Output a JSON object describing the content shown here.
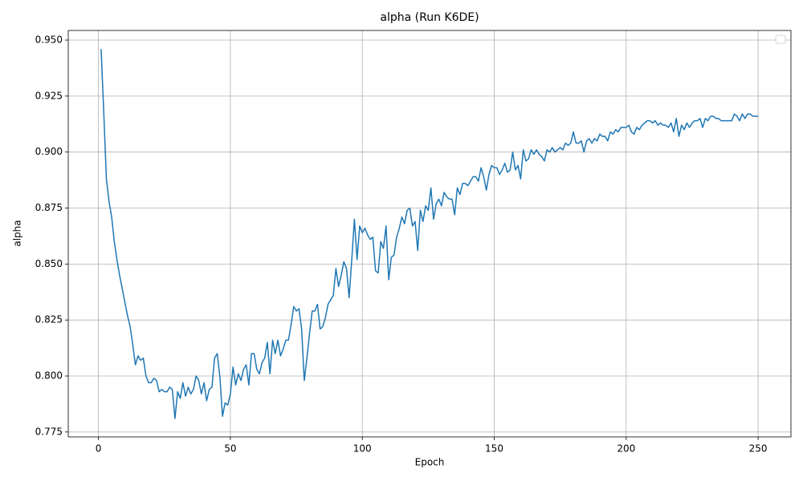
{
  "chart_data": {
    "type": "line",
    "title": "alpha (Run K6DE)",
    "xlabel": "Epoch",
    "ylabel": "alpha",
    "x": [
      1,
      2,
      3,
      4,
      5,
      6,
      7,
      8,
      9,
      10,
      11,
      12,
      13,
      14,
      15,
      16,
      17,
      18,
      19,
      20,
      21,
      22,
      23,
      24,
      25,
      26,
      27,
      28,
      29,
      30,
      31,
      32,
      33,
      34,
      35,
      36,
      37,
      38,
      39,
      40,
      41,
      42,
      43,
      44,
      45,
      46,
      47,
      48,
      49,
      50,
      51,
      52,
      53,
      54,
      55,
      56,
      57,
      58,
      59,
      60,
      61,
      62,
      63,
      64,
      65,
      66,
      67,
      68,
      69,
      70,
      71,
      72,
      73,
      74,
      75,
      76,
      77,
      78,
      79,
      80,
      81,
      82,
      83,
      84,
      85,
      86,
      87,
      88,
      89,
      90,
      91,
      92,
      93,
      94,
      95,
      96,
      97,
      98,
      99,
      100,
      101,
      102,
      103,
      104,
      105,
      106,
      107,
      108,
      109,
      110,
      111,
      112,
      113,
      114,
      115,
      116,
      117,
      118,
      119,
      120,
      121,
      122,
      123,
      124,
      125,
      126,
      127,
      128,
      129,
      130,
      131,
      132,
      133,
      134,
      135,
      136,
      137,
      138,
      139,
      140,
      141,
      142,
      143,
      144,
      145,
      146,
      147,
      148,
      149,
      150,
      151,
      152,
      153,
      154,
      155,
      156,
      157,
      158,
      159,
      160,
      161,
      162,
      163,
      164,
      165,
      166,
      167,
      168,
      169,
      170,
      171,
      172,
      173,
      174,
      175,
      176,
      177,
      178,
      179,
      180,
      181,
      182,
      183,
      184,
      185,
      186,
      187,
      188,
      189,
      190,
      191,
      192,
      193,
      194,
      195,
      196,
      197,
      198,
      199,
      200,
      201,
      202,
      203,
      204,
      205,
      206,
      207,
      208,
      209,
      210,
      211,
      212,
      213,
      214,
      215,
      216,
      217,
      218,
      219,
      220,
      221,
      222,
      223,
      224,
      225,
      226,
      227,
      228,
      229,
      230,
      231,
      232,
      233,
      234,
      235,
      236,
      237,
      238,
      239,
      240,
      241,
      242,
      243,
      244,
      245,
      246,
      247,
      248,
      249,
      250
    ],
    "series": [
      {
        "color": "#1f77b4",
        "values": [
          0.946,
          0.918,
          0.888,
          0.878,
          0.871,
          0.86,
          0.852,
          0.845,
          0.839,
          0.833,
          0.827,
          0.822,
          0.814,
          0.805,
          0.809,
          0.807,
          0.808,
          0.8,
          0.797,
          0.797,
          0.799,
          0.798,
          0.793,
          0.794,
          0.793,
          0.793,
          0.795,
          0.794,
          0.781,
          0.793,
          0.79,
          0.797,
          0.791,
          0.795,
          0.792,
          0.794,
          0.8,
          0.798,
          0.792,
          0.797,
          0.789,
          0.794,
          0.795,
          0.808,
          0.81,
          0.8,
          0.782,
          0.788,
          0.787,
          0.792,
          0.804,
          0.796,
          0.801,
          0.798,
          0.803,
          0.805,
          0.796,
          0.81,
          0.81,
          0.803,
          0.801,
          0.806,
          0.808,
          0.815,
          0.801,
          0.816,
          0.81,
          0.816,
          0.809,
          0.812,
          0.816,
          0.816,
          0.823,
          0.831,
          0.829,
          0.83,
          0.821,
          0.798,
          0.808,
          0.819,
          0.829,
          0.829,
          0.832,
          0.821,
          0.822,
          0.826,
          0.832,
          0.834,
          0.836,
          0.848,
          0.84,
          0.845,
          0.851,
          0.848,
          0.835,
          0.852,
          0.87,
          0.852,
          0.867,
          0.864,
          0.866,
          0.863,
          0.861,
          0.862,
          0.847,
          0.846,
          0.86,
          0.857,
          0.867,
          0.843,
          0.853,
          0.854,
          0.862,
          0.866,
          0.871,
          0.868,
          0.874,
          0.875,
          0.867,
          0.869,
          0.856,
          0.874,
          0.869,
          0.876,
          0.874,
          0.884,
          0.87,
          0.877,
          0.879,
          0.876,
          0.882,
          0.88,
          0.879,
          0.879,
          0.872,
          0.884,
          0.881,
          0.886,
          0.886,
          0.885,
          0.887,
          0.889,
          0.889,
          0.887,
          0.893,
          0.889,
          0.883,
          0.89,
          0.894,
          0.893,
          0.893,
          0.89,
          0.892,
          0.895,
          0.891,
          0.892,
          0.9,
          0.892,
          0.894,
          0.888,
          0.901,
          0.896,
          0.897,
          0.901,
          0.899,
          0.901,
          0.899,
          0.898,
          0.896,
          0.901,
          0.9,
          0.902,
          0.9,
          0.901,
          0.902,
          0.901,
          0.904,
          0.903,
          0.904,
          0.909,
          0.904,
          0.904,
          0.905,
          0.9,
          0.905,
          0.906,
          0.904,
          0.906,
          0.905,
          0.908,
          0.907,
          0.907,
          0.905,
          0.909,
          0.908,
          0.91,
          0.909,
          0.911,
          0.911,
          0.911,
          0.912,
          0.909,
          0.908,
          0.911,
          0.91,
          0.912,
          0.913,
          0.914,
          0.914,
          0.913,
          0.914,
          0.912,
          0.913,
          0.912,
          0.912,
          0.911,
          0.913,
          0.909,
          0.915,
          0.907,
          0.912,
          0.91,
          0.913,
          0.911,
          0.913,
          0.914,
          0.914,
          0.915,
          0.911,
          0.915,
          0.914,
          0.916,
          0.916,
          0.915,
          0.915,
          0.914,
          0.914,
          0.914,
          0.914,
          0.914,
          0.917,
          0.916,
          0.914,
          0.917,
          0.915,
          0.917,
          0.917,
          0.916,
          0.916,
          0.916
        ]
      }
    ],
    "xlim": [
      -11.45,
      262.45
    ],
    "xticks": [
      0,
      50,
      100,
      150,
      200,
      250
    ],
    "ylim": [
      0.7728,
      0.9543
    ],
    "yticks": [
      {
        "value": 0.775,
        "label": "0.775"
      },
      {
        "value": 0.8,
        "label": "0.800"
      },
      {
        "value": 0.825,
        "label": "0.825"
      },
      {
        "value": 0.85,
        "label": "0.850"
      },
      {
        "value": 0.875,
        "label": "0.875"
      },
      {
        "value": 0.9,
        "label": "0.900"
      },
      {
        "value": 0.925,
        "label": "0.925"
      },
      {
        "value": 0.95,
        "label": "0.950"
      }
    ],
    "grid": true,
    "legend": "upper right"
  }
}
